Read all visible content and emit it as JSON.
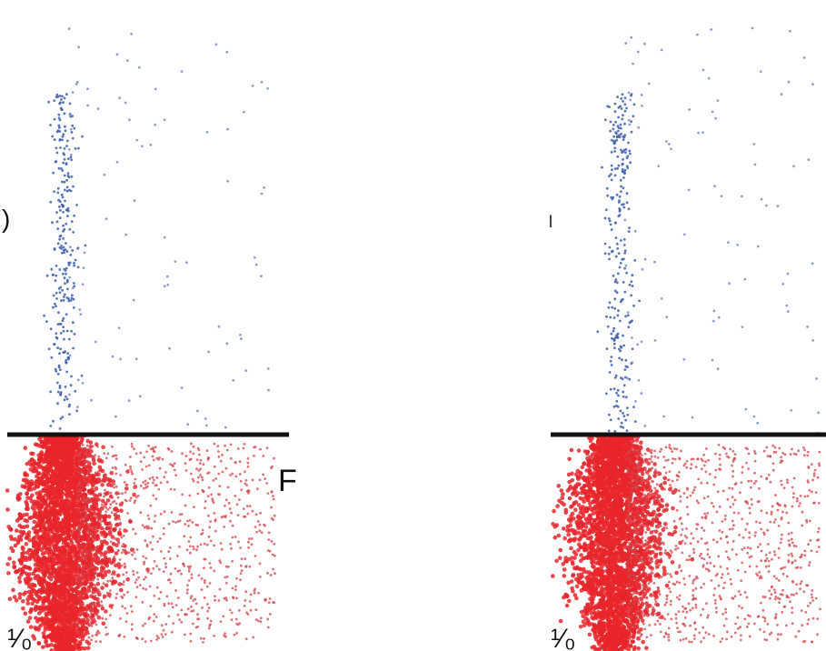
{
  "colors": {
    "upper_population": "#3b5ea8",
    "upper_sparse": "#6b7fb8",
    "lower_population": "#e8262c",
    "lower_sparse": "#d0454f",
    "gate_line": "#111111",
    "background": "#ffffff"
  },
  "chart_data": [
    {
      "type": "scatter",
      "title": "",
      "xlabel": "",
      "ylabel": "",
      "grid": false,
      "gate": {
        "orientation": "horizontal",
        "y": 0.5
      },
      "series": [
        {
          "color": "#3b5ea8",
          "x_center": 0.2,
          "x_spread": 0.025,
          "y_range": [
            0.5,
            0.9
          ],
          "points": 260
        },
        {
          "color": "#6b7fb8",
          "x_range": [
            0.22,
            0.95
          ],
          "y_range": [
            0.5,
            0.98
          ],
          "points": 90
        },
        {
          "color": "#e8262c",
          "x_center": 0.2,
          "x_spread": 0.06,
          "y_range": [
            0.0,
            0.5
          ],
          "points": 3200
        },
        {
          "color": "#d0454f",
          "x_range": [
            0.25,
            0.95
          ],
          "y_range": [
            0.02,
            0.48
          ],
          "points": 900
        }
      ],
      "edge_text": {
        "left_mid": ")",
        "right_mid": "F",
        "bottom_left": "¹⁄₀"
      }
    },
    {
      "type": "scatter",
      "title": "",
      "xlabel": "",
      "ylabel": "",
      "grid": false,
      "gate": {
        "orientation": "horizontal",
        "y": 0.5
      },
      "series": [
        {
          "color": "#3b5ea8",
          "x_center": 0.25,
          "x_spread": 0.025,
          "y_range": [
            0.5,
            0.9
          ],
          "points": 260
        },
        {
          "color": "#6b7fb8",
          "x_range": [
            0.27,
            0.98
          ],
          "y_range": [
            0.5,
            0.98
          ],
          "points": 95
        },
        {
          "color": "#e8262c",
          "x_center": 0.23,
          "x_spread": 0.06,
          "y_range": [
            0.0,
            0.5
          ],
          "points": 3200
        },
        {
          "color": "#d0454f",
          "x_range": [
            0.28,
            0.98
          ],
          "y_range": [
            0.02,
            0.48
          ],
          "points": 950
        }
      ],
      "edge_text": {
        "left_mid": "l",
        "right_mid": "",
        "bottom_left": "¹⁄₀"
      }
    }
  ]
}
